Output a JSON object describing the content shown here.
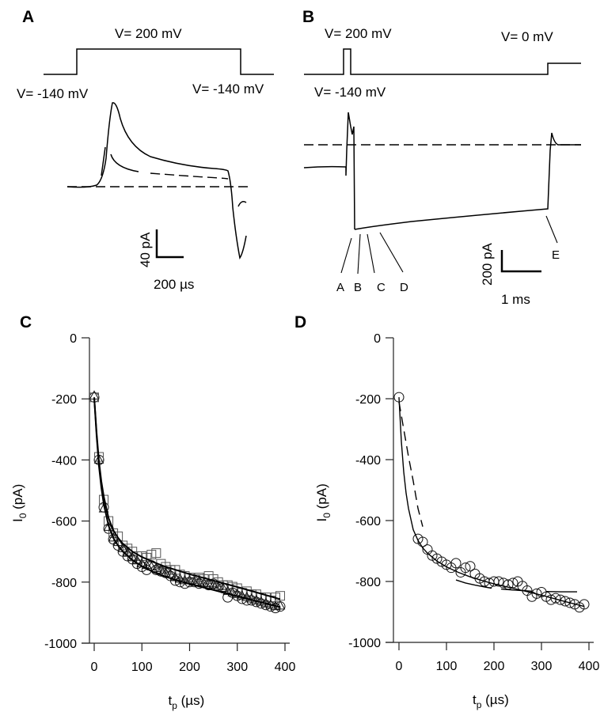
{
  "panels": {
    "A": {
      "label": "A",
      "voltage_high": "V= 200 mV",
      "voltage_low_left": "V= -140 mV",
      "voltage_low_right": "V= -140 mV",
      "scale_current": "40 pA",
      "scale_time": "200 µs"
    },
    "B": {
      "label": "B",
      "voltage_high": "V= 200 mV",
      "voltage_zero": "V= 0 mV",
      "voltage_low": "V= -140 mV",
      "scale_current": "200 pA",
      "scale_time": "1 ms",
      "arrows": [
        "A",
        "B",
        "C",
        "D",
        "E"
      ]
    },
    "C": {
      "label": "C"
    },
    "D": {
      "label": "D"
    }
  },
  "chart_data": [
    {
      "panel": "C",
      "type": "scatter",
      "xlabel": "t_p (µs)",
      "xlabel_main": "t",
      "xlabel_sub": "p",
      "xlabel_unit": " (µs)",
      "ylabel_main": "I",
      "ylabel_sub": "0",
      "ylabel_unit": " (pA)",
      "xlim": [
        0,
        400
      ],
      "ylim": [
        -1000,
        0
      ],
      "xticks": [
        "0",
        "100",
        "200",
        "300",
        "400"
      ],
      "yticks": [
        "0",
        "-200",
        "-400",
        "-600",
        "-800",
        "-1000"
      ],
      "xtick_values": [
        0,
        100,
        200,
        300,
        400
      ],
      "ytick_values": [
        0,
        -200,
        -400,
        -600,
        -800,
        -1000
      ],
      "series": [
        {
          "name": "circles",
          "marker": "circle",
          "x": [
            0,
            10,
            20,
            30,
            40,
            50,
            60,
            70,
            80,
            90,
            100,
            110,
            120,
            130,
            140,
            150,
            160,
            170,
            180,
            190,
            200,
            210,
            220,
            230,
            240,
            250,
            260,
            270,
            280,
            290,
            300,
            310,
            320,
            330,
            340,
            350,
            360,
            370,
            380,
            390
          ],
          "y": [
            -195,
            -400,
            -555,
            -625,
            -660,
            -680,
            -700,
            -715,
            -725,
            -740,
            -750,
            -760,
            -745,
            -760,
            -765,
            -770,
            -780,
            -795,
            -800,
            -805,
            -800,
            -800,
            -805,
            -800,
            -810,
            -805,
            -815,
            -820,
            -850,
            -835,
            -845,
            -855,
            -860,
            -860,
            -865,
            -870,
            -875,
            -880,
            -885,
            -880
          ]
        },
        {
          "name": "squares",
          "marker": "square",
          "x": [
            0,
            10,
            20,
            30,
            40,
            50,
            60,
            70,
            80,
            90,
            100,
            110,
            120,
            130,
            140,
            150,
            160,
            170,
            180,
            190,
            200,
            210,
            220,
            230,
            240,
            250,
            260,
            270,
            280,
            290,
            300,
            310,
            320,
            330,
            340,
            350,
            360,
            370,
            380,
            390
          ],
          "y": [
            -195,
            -390,
            -530,
            -600,
            -640,
            -650,
            -680,
            -690,
            -700,
            -715,
            -715,
            -720,
            -710,
            -705,
            -740,
            -750,
            -760,
            -760,
            -775,
            -780,
            -785,
            -790,
            -785,
            -790,
            -780,
            -790,
            -800,
            -810,
            -810,
            -815,
            -820,
            -835,
            -830,
            -840,
            -840,
            -850,
            -850,
            -860,
            -850,
            -845
          ]
        },
        {
          "name": "triangles",
          "marker": "triangle",
          "x": [
            0,
            10,
            20,
            30,
            40,
            50,
            60,
            70,
            80,
            90,
            100,
            110,
            120,
            130,
            140,
            150,
            160,
            170,
            180,
            190,
            200,
            210,
            220,
            230,
            240,
            250,
            260,
            270,
            280,
            290,
            300,
            310,
            320,
            330,
            340,
            350,
            360,
            370,
            380,
            390
          ],
          "y": [
            -190,
            -400,
            -560,
            -620,
            -655,
            -670,
            -690,
            -705,
            -720,
            -730,
            -740,
            -745,
            -750,
            -755,
            -760,
            -770,
            -775,
            -785,
            -790,
            -795,
            -795,
            -800,
            -800,
            -805,
            -805,
            -810,
            -815,
            -820,
            -830,
            -835,
            -840,
            -845,
            -850,
            -855,
            -860,
            -865,
            -870,
            -875,
            -880,
            -878
          ]
        }
      ],
      "fits": [
        {
          "name": "fit-circles",
          "style": "solid",
          "x": [
            0,
            5,
            10,
            15,
            20,
            30,
            40,
            50,
            60,
            80,
            100,
            125,
            150,
            175,
            200,
            250,
            300,
            350,
            390
          ],
          "y": [
            -195,
            -320,
            -420,
            -490,
            -545,
            -615,
            -655,
            -680,
            -700,
            -728,
            -748,
            -768,
            -782,
            -795,
            -806,
            -826,
            -846,
            -866,
            -882
          ]
        },
        {
          "name": "fit-squares",
          "style": "solid",
          "x": [
            0,
            5,
            10,
            15,
            20,
            30,
            40,
            50,
            60,
            80,
            100,
            125,
            150,
            175,
            200,
            250,
            300,
            350,
            390
          ],
          "y": [
            -195,
            -310,
            -405,
            -470,
            -520,
            -590,
            -630,
            -655,
            -674,
            -700,
            -718,
            -735,
            -750,
            -762,
            -774,
            -795,
            -816,
            -838,
            -856
          ]
        }
      ]
    },
    {
      "panel": "D",
      "type": "scatter",
      "xlabel": "t_p (µs)",
      "xlabel_main": "t",
      "xlabel_sub": "p",
      "xlabel_unit": " (µs)",
      "ylabel_main": "I",
      "ylabel_sub": "0",
      "ylabel_unit": " (pA)",
      "xlim": [
        0,
        400
      ],
      "ylim": [
        -1000,
        0
      ],
      "xticks": [
        "0",
        "100",
        "200",
        "300",
        "400"
      ],
      "yticks": [
        "0",
        "-200",
        "-400",
        "-600",
        "-800",
        "-1000"
      ],
      "xtick_values": [
        0,
        100,
        200,
        300,
        400
      ],
      "ytick_values": [
        0,
        -200,
        -400,
        -600,
        -800,
        -1000
      ],
      "series": [
        {
          "name": "circles",
          "marker": "circle",
          "x": [
            0,
            40,
            50,
            60,
            70,
            80,
            90,
            100,
            110,
            120,
            130,
            140,
            150,
            160,
            170,
            180,
            190,
            200,
            210,
            220,
            230,
            240,
            250,
            260,
            270,
            280,
            290,
            300,
            310,
            320,
            330,
            340,
            350,
            360,
            370,
            380,
            390
          ],
          "y": [
            -195,
            -660,
            -670,
            -695,
            -715,
            -725,
            -735,
            -745,
            -755,
            -740,
            -770,
            -755,
            -750,
            -775,
            -790,
            -800,
            -805,
            -800,
            -800,
            -805,
            -810,
            -805,
            -800,
            -815,
            -830,
            -850,
            -840,
            -835,
            -850,
            -860,
            -855,
            -860,
            -865,
            -870,
            -875,
            -885,
            -875
          ]
        }
      ],
      "fits": [
        {
          "name": "fit-solid",
          "style": "solid",
          "x": [
            0,
            5,
            10,
            15,
            20,
            30,
            40,
            50,
            60,
            80,
            100,
            125,
            150,
            175,
            200,
            250,
            300,
            350,
            390
          ],
          "y": [
            -195,
            -340,
            -440,
            -510,
            -560,
            -630,
            -665,
            -690,
            -707,
            -733,
            -752,
            -770,
            -785,
            -797,
            -808,
            -826,
            -845,
            -866,
            -882
          ]
        },
        {
          "name": "fit-dashed-1",
          "style": "dashed",
          "x": [
            0,
            10,
            20,
            30,
            40,
            50
          ],
          "y": [
            -210,
            -300,
            -390,
            -470,
            -560,
            -620
          ]
        },
        {
          "name": "fit-segment-2",
          "style": "solid",
          "x": [
            120,
            140,
            160,
            180,
            195
          ],
          "y": [
            -795,
            -805,
            -812,
            -818,
            -822
          ]
        },
        {
          "name": "fit-segment-3",
          "style": "solid",
          "x": [
            215,
            240,
            260,
            280
          ],
          "y": [
            -825,
            -828,
            -830,
            -832
          ]
        },
        {
          "name": "fit-segment-4",
          "style": "solid",
          "x": [
            310,
            340,
            375
          ],
          "y": [
            -833,
            -834,
            -834
          ]
        }
      ]
    }
  ]
}
